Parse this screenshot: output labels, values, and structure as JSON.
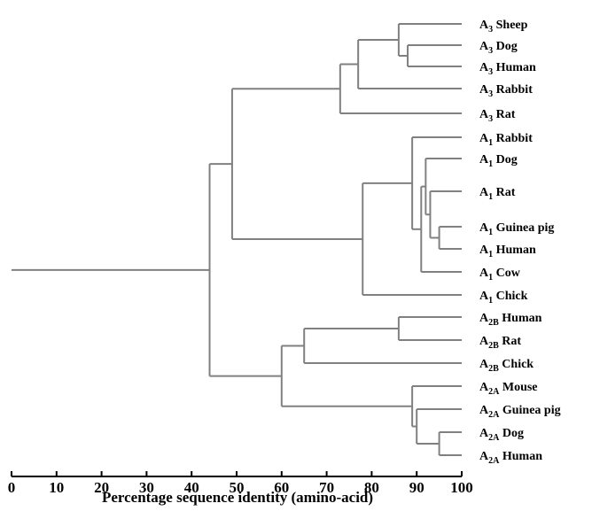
{
  "chart_data": {
    "type": "dendrogram",
    "xlabel": "Percentage sequence identity (amino-acid)",
    "xlim": [
      0,
      100
    ],
    "x_ticks": [
      "0",
      "10",
      "20",
      "30",
      "40",
      "50",
      "60",
      "70",
      "80",
      "90",
      "100"
    ],
    "leaves": [
      {
        "id": "a3_sheep",
        "base": "A",
        "sub": "3",
        "name": "Sheep"
      },
      {
        "id": "a3_dog",
        "base": "A",
        "sub": "3",
        "name": "Dog"
      },
      {
        "id": "a3_human",
        "base": "A",
        "sub": "3",
        "name": "Human"
      },
      {
        "id": "a3_rabbit",
        "base": "A",
        "sub": "3",
        "name": "Rabbit"
      },
      {
        "id": "a3_rat",
        "base": "A",
        "sub": "3",
        "name": "Rat"
      },
      {
        "id": "a1_rabbit",
        "base": "A",
        "sub": "1",
        "name": "Rabbit"
      },
      {
        "id": "a1_dog",
        "base": "A",
        "sub": "1",
        "name": "Dog"
      },
      {
        "id": "a1_rat",
        "base": "A",
        "sub": "1",
        "name": "Rat"
      },
      {
        "id": "a1_guinea_pig",
        "base": "A",
        "sub": "1",
        "name": "Guinea pig"
      },
      {
        "id": "a1_human",
        "base": "A",
        "sub": "1",
        "name": "Human"
      },
      {
        "id": "a1_cow",
        "base": "A",
        "sub": "1",
        "name": "Cow"
      },
      {
        "id": "a1_chick",
        "base": "A",
        "sub": "1",
        "name": "Chick"
      },
      {
        "id": "a2b_human",
        "base": "A",
        "sub": "2B",
        "name": "Human"
      },
      {
        "id": "a2b_rat",
        "base": "A",
        "sub": "2B",
        "name": "Rat"
      },
      {
        "id": "a2b_chick",
        "base": "A",
        "sub": "2B",
        "name": "Chick"
      },
      {
        "id": "a2a_mouse",
        "base": "A",
        "sub": "2A",
        "name": "Mouse"
      },
      {
        "id": "a2a_guinea_pig",
        "base": "A",
        "sub": "2A",
        "name": "Guinea pig"
      },
      {
        "id": "a2a_dog",
        "base": "A",
        "sub": "2A",
        "name": "Dog"
      },
      {
        "id": "a2a_human",
        "base": "A",
        "sub": "2A",
        "name": "Human"
      }
    ],
    "tree": {
      "at": 44,
      "children": [
        {
          "at": 49,
          "children": [
            {
              "at": 73,
              "children": [
                {
                  "at": 77,
                  "children": [
                    {
                      "at": 86,
                      "children": [
                        "a3_sheep",
                        {
                          "at": 88,
                          "children": [
                            "a3_dog",
                            "a3_human"
                          ]
                        }
                      ]
                    },
                    "a3_rabbit"
                  ]
                },
                "a3_rat"
              ]
            },
            {
              "at": 78,
              "children": [
                {
                  "at": 89,
                  "children": [
                    "a1_rabbit",
                    {
                      "at": 91,
                      "children": [
                        {
                          "at": 92,
                          "children": [
                            "a1_dog",
                            {
                              "at": 93,
                              "children": [
                                "a1_rat",
                                {
                                  "at": 95,
                                  "children": [
                                    "a1_guinea_pig",
                                    "a1_human"
                                  ]
                                }
                              ]
                            }
                          ]
                        },
                        "a1_cow"
                      ]
                    }
                  ]
                },
                "a1_chick"
              ]
            }
          ]
        },
        {
          "at": 60,
          "children": [
            {
              "at": 65,
              "children": [
                {
                  "at": 86,
                  "children": [
                    "a2b_human",
                    "a2b_rat"
                  ]
                },
                "a2b_chick"
              ]
            },
            {
              "at": 89,
              "children": [
                "a2a_mouse",
                {
                  "at": 90,
                  "children": [
                    "a2a_guinea_pig",
                    {
                      "at": 95,
                      "children": [
                        "a2a_dog",
                        "a2a_human"
                      ]
                    }
                  ]
                }
              ]
            }
          ]
        }
      ]
    }
  }
}
